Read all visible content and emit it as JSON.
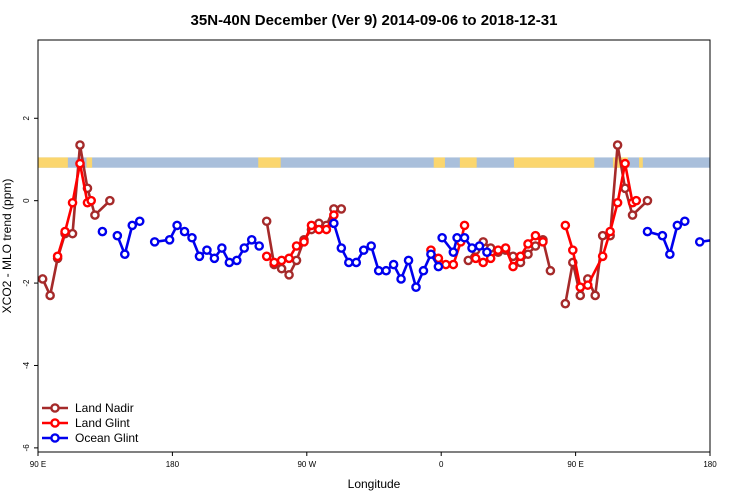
{
  "chart_data": {
    "type": "line",
    "title": "35N-40N December (Ver 9)   2014-09-06 to 2018-12-31",
    "xlabel": "Longitude",
    "ylabel": "XCO2 - MLO trend (ppm)",
    "xlim": [
      90,
      450
    ],
    "ylim": [
      -6.1,
      3.9
    ],
    "x_ticks": [
      {
        "value": 90,
        "label": "90 E"
      },
      {
        "value": 162,
        "label": "180"
      },
      {
        "value": 234,
        "label": "90 W"
      },
      {
        "value": 306,
        "label": "0"
      },
      {
        "value": 378,
        "label": "90 E"
      },
      {
        "value": 450,
        "label": "180"
      }
    ],
    "y_ticks": [
      {
        "value": 2,
        "label": "2"
      },
      {
        "value": 0,
        "label": "0"
      },
      {
        "value": -2,
        "label": "-2"
      },
      {
        "value": -4,
        "label": "-4"
      },
      {
        "value": -6,
        "label": "-6"
      }
    ],
    "legend": {
      "position": "bottom-left"
    },
    "land_sea_strip": {
      "ymin": 0.8,
      "ymax": 1.05,
      "ocean_color": "#A9BFDB",
      "land_color": "#FBD66E",
      "land_segments": [
        [
          90,
          106
        ],
        [
          116,
          119
        ],
        [
          208,
          220
        ],
        [
          302,
          308
        ],
        [
          316,
          325
        ],
        [
          345,
          388
        ],
        [
          398,
          406
        ],
        [
          412,
          414
        ]
      ]
    },
    "series": [
      {
        "name": "Land Nadir",
        "color": "#A52A2A",
        "points": [
          [
            92.5,
            -1.9
          ],
          [
            96.5,
            -2.3
          ],
          [
            100.5,
            -1.4
          ],
          [
            104.5,
            -0.8
          ],
          [
            108.5,
            -0.8
          ],
          [
            112.5,
            1.35
          ],
          [
            116.5,
            0.3
          ],
          [
            120.5,
            -0.35
          ],
          [
            128.5,
            0.0
          ],
          null,
          [
            212.5,
            -0.5
          ],
          [
            216.5,
            -1.55
          ],
          [
            220.5,
            -1.65
          ],
          [
            224.5,
            -1.8
          ],
          [
            228.5,
            -1.45
          ],
          [
            232.5,
            -0.95
          ],
          [
            236.5,
            -0.7
          ],
          [
            240.5,
            -0.55
          ],
          [
            244.5,
            -0.6
          ],
          [
            248.5,
            -0.2
          ],
          [
            252.5,
            -0.2
          ],
          null,
          [
            320.5,
            -1.45
          ],
          [
            324.5,
            -1.2
          ],
          [
            328.5,
            -1.0
          ],
          [
            332.5,
            -1.15
          ],
          [
            336.5,
            -1.25
          ],
          [
            340.5,
            -1.2
          ],
          [
            344.5,
            -1.35
          ],
          [
            348.5,
            -1.5
          ],
          [
            352.5,
            -1.3
          ],
          [
            356.5,
            -1.1
          ],
          [
            360.5,
            -0.95
          ],
          [
            364.5,
            -1.7
          ],
          null,
          [
            372.5,
            -2.5
          ],
          [
            376.5,
            -1.5
          ],
          [
            380.5,
            -2.3
          ],
          [
            384.5,
            -1.9
          ],
          [
            388.5,
            -2.3
          ],
          [
            392.5,
            -0.85
          ],
          [
            396.5,
            -0.85
          ],
          [
            400.5,
            1.35
          ],
          [
            404.5,
            0.3
          ],
          [
            408.5,
            -0.35
          ],
          [
            416.5,
            0.0
          ]
        ]
      },
      {
        "name": "Land Glint",
        "color": "#FF0000",
        "points": [
          [
            100.5,
            -1.35
          ],
          [
            104.5,
            -0.75
          ],
          [
            108.5,
            -0.05
          ],
          [
            112.5,
            0.9
          ],
          [
            116.5,
            -0.05
          ],
          [
            118.5,
            0.0
          ],
          null,
          [
            212.5,
            -1.35
          ],
          [
            216.5,
            -1.5
          ],
          [
            220.5,
            -1.45
          ],
          [
            224.5,
            -1.4
          ],
          [
            228.5,
            -1.1
          ],
          [
            232.5,
            -1.0
          ],
          [
            236.5,
            -0.6
          ],
          [
            240.5,
            -0.7
          ],
          [
            244.5,
            -0.7
          ],
          [
            248.5,
            -0.35
          ],
          null,
          [
            300.5,
            -1.2
          ],
          [
            304.5,
            -1.4
          ],
          [
            308.5,
            -1.55
          ],
          [
            312.5,
            -1.55
          ],
          [
            316.5,
            -1.0
          ],
          [
            318.5,
            -0.6
          ],
          null,
          [
            324.5,
            -1.4
          ],
          [
            328.5,
            -1.5
          ],
          [
            332.5,
            -1.4
          ],
          [
            336.5,
            -1.2
          ],
          [
            340.5,
            -1.15
          ],
          [
            344.5,
            -1.6
          ],
          [
            348.5,
            -1.35
          ],
          [
            352.5,
            -1.05
          ],
          [
            356.5,
            -0.85
          ],
          [
            360.5,
            -1.0
          ],
          null,
          [
            372.5,
            -0.6
          ],
          [
            376.5,
            -1.2
          ],
          [
            380.5,
            -2.1
          ],
          [
            384.5,
            -2.05
          ],
          [
            392.5,
            -1.35
          ],
          [
            396.5,
            -0.75
          ],
          [
            400.5,
            -0.05
          ],
          [
            404.5,
            0.9
          ],
          [
            408.5,
            -0.05
          ],
          [
            410.5,
            0.0
          ]
        ]
      },
      {
        "name": "Ocean Glint",
        "color": "#0000EE",
        "points": [
          [
            124.5,
            -0.75
          ],
          null,
          [
            132.5,
            -0.85
          ],
          [
            136.5,
            -1.3
          ],
          [
            140.5,
            -0.6
          ],
          [
            144.5,
            -0.5
          ],
          null,
          [
            152.5,
            -1.0
          ],
          [
            160.5,
            -0.95
          ],
          [
            164.5,
            -0.6
          ],
          [
            168.5,
            -0.75
          ],
          [
            172.5,
            -0.9
          ],
          [
            176.5,
            -1.35
          ],
          [
            180.5,
            -1.2
          ],
          [
            184.5,
            -1.4
          ],
          [
            188.5,
            -1.15
          ],
          [
            192.5,
            -1.5
          ],
          [
            196.5,
            -1.45
          ],
          [
            200.5,
            -1.15
          ],
          [
            204.5,
            -0.95
          ],
          [
            208.5,
            -1.1
          ],
          null,
          [
            248.5,
            -0.55
          ],
          [
            252.5,
            -1.15
          ],
          [
            256.5,
            -1.5
          ],
          [
            260.5,
            -1.5
          ],
          [
            264.5,
            -1.2
          ],
          [
            268.5,
            -1.1
          ],
          [
            272.5,
            -1.7
          ],
          [
            276.5,
            -1.7
          ],
          [
            280.5,
            -1.55
          ],
          [
            284.5,
            -1.9
          ],
          [
            288.5,
            -1.45
          ],
          [
            292.5,
            -2.1
          ],
          [
            296.5,
            -1.7
          ],
          [
            300.5,
            -1.3
          ],
          [
            304.5,
            -1.6
          ],
          null,
          [
            306.5,
            -0.9
          ],
          [
            312.5,
            -1.25
          ],
          [
            314.5,
            -0.9
          ],
          [
            318.5,
            -0.9
          ],
          [
            322.5,
            -1.15
          ],
          [
            326.5,
            -1.1
          ],
          [
            330.5,
            -1.25
          ],
          null,
          [
            416.5,
            -0.75
          ],
          [
            424.5,
            -0.85
          ],
          [
            428.5,
            -1.3
          ],
          [
            432.5,
            -0.6
          ],
          [
            436.5,
            -0.5
          ],
          null,
          [
            444.5,
            -1.0
          ],
          [
            452.5,
            -0.95
          ]
        ]
      }
    ]
  }
}
